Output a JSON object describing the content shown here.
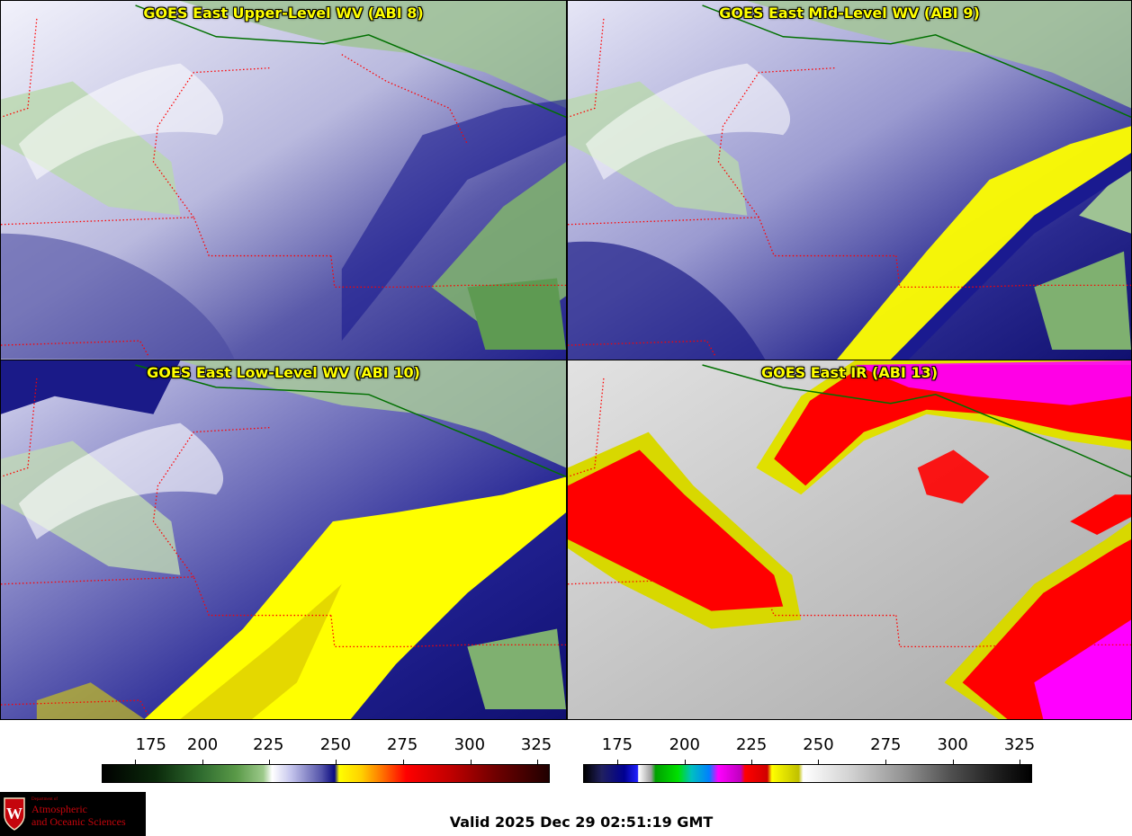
{
  "panels": [
    {
      "title": "GOES East Upper-Level WV (ABI 8)"
    },
    {
      "title": "GOES East Mid-Level WV (ABI 9)"
    },
    {
      "title": "GOES East Low-Level WV (ABI 10)"
    },
    {
      "title": "GOES East IR (ABI 13)"
    }
  ],
  "colorbars": [
    {
      "ticks": [
        "175",
        "200",
        "225",
        "250",
        "275",
        "300",
        "325"
      ]
    },
    {
      "ticks": [
        "175",
        "200",
        "225",
        "250",
        "275",
        "300",
        "325"
      ]
    }
  ],
  "logo": {
    "department": "Department of",
    "line1": "Atmospheric",
    "line2": "and Oceanic Sciences",
    "emblem_letter": "W"
  },
  "valid_time": "Valid 2025 Dec 29 02:51:19 GMT",
  "colors": {
    "wv_moist": "#ffffff",
    "wv_mid": "#3a3aa0",
    "wv_dry": "#ffff00",
    "ir_cold": "#ff0000",
    "ir_coldest": "#ff00ff",
    "ir_warm": "#b8b8b8",
    "border": "#ff0000",
    "coast": "#007000"
  }
}
